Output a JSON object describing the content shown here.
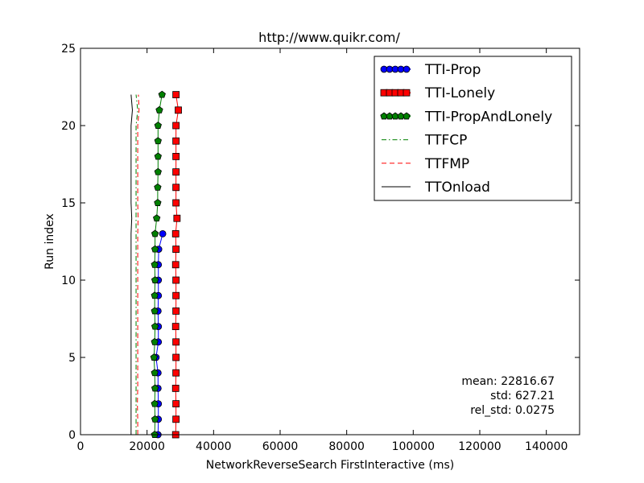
{
  "chart_data": {
    "type": "line",
    "title": "http://www.quikr.com/",
    "xlabel": "NetworkReverseSearch FirstInteractive (ms)",
    "ylabel": "Run index",
    "xlim": [
      0,
      150000
    ],
    "ylim": [
      0,
      25
    ],
    "xticks": [
      0,
      20000,
      40000,
      60000,
      80000,
      100000,
      120000,
      140000
    ],
    "yticks": [
      0,
      5,
      10,
      15,
      20,
      25
    ],
    "legend_position": "top-right",
    "grid": false,
    "series": [
      {
        "name": "TTI-Prop",
        "color": "#0000ff",
        "marker": "circle",
        "line": "solid",
        "y": [
          0,
          1,
          2,
          3,
          4,
          5,
          6,
          7,
          8,
          9,
          10,
          11,
          12,
          13
        ],
        "x": [
          23300,
          23400,
          23400,
          23300,
          23300,
          22700,
          23400,
          23400,
          23300,
          23400,
          23400,
          23400,
          23500,
          24700
        ]
      },
      {
        "name": "TTI-Lonely",
        "color": "#ff0000",
        "marker": "square",
        "line": "solid",
        "y": [
          0,
          1,
          2,
          3,
          4,
          5,
          6,
          7,
          8,
          9,
          10,
          11,
          12,
          13,
          14,
          15,
          16,
          17,
          18,
          19,
          20,
          21,
          22
        ],
        "x": [
          28600,
          28700,
          28700,
          28600,
          28700,
          28700,
          28700,
          28600,
          28700,
          28700,
          28700,
          28600,
          28700,
          28600,
          29000,
          28700,
          28700,
          28700,
          28700,
          28700,
          28700,
          29400,
          28700
        ]
      },
      {
        "name": "TTI-PropAndLonely",
        "color": "#008000",
        "marker": "pentagon",
        "line": "solid",
        "y": [
          0,
          1,
          2,
          3,
          4,
          5,
          6,
          7,
          8,
          9,
          10,
          11,
          12,
          13,
          14,
          15,
          16,
          17,
          18,
          19,
          20,
          21,
          22
        ],
        "x": [
          22300,
          22400,
          22300,
          22400,
          22300,
          22100,
          22300,
          22400,
          22300,
          22300,
          22400,
          22300,
          22400,
          22400,
          22900,
          23200,
          23200,
          23300,
          23300,
          23300,
          23300,
          23700,
          24500
        ]
      },
      {
        "name": "TTFCP",
        "color": "#008000",
        "marker": "none",
        "line": "dashdot",
        "y": [
          0,
          1,
          2,
          3,
          4,
          5,
          6,
          7,
          8,
          9,
          10,
          11,
          12,
          13,
          14,
          15,
          16,
          17,
          18,
          19,
          20,
          21,
          22
        ],
        "x": [
          16700,
          16700,
          16700,
          16700,
          16700,
          16700,
          16700,
          16700,
          16700,
          16700,
          16700,
          16700,
          16700,
          16700,
          16700,
          16700,
          16700,
          16700,
          16700,
          16700,
          16700,
          17200,
          16700
        ]
      },
      {
        "name": "TTFMP",
        "color": "#ff0000",
        "marker": "none",
        "line": "dashed",
        "y": [
          0,
          1,
          2,
          3,
          4,
          5,
          6,
          7,
          8,
          9,
          10,
          11,
          12,
          13,
          14,
          15,
          16,
          17,
          18,
          19,
          20,
          21,
          22
        ],
        "x": [
          17200,
          17200,
          17100,
          17200,
          17200,
          17200,
          17200,
          17200,
          17200,
          17200,
          17200,
          17200,
          17200,
          17200,
          17300,
          17200,
          17200,
          17200,
          17200,
          17200,
          17200,
          17600,
          17400
        ]
      },
      {
        "name": "TTOnload",
        "color": "#000000",
        "marker": "none",
        "line": "solid",
        "y": [
          0,
          1,
          2,
          3,
          4,
          5,
          6,
          7,
          8,
          9,
          10,
          11,
          12,
          13,
          14,
          15,
          16,
          17,
          18,
          19,
          20,
          21,
          22
        ],
        "x": [
          15200,
          15200,
          15200,
          15200,
          15200,
          15200,
          15200,
          15200,
          15200,
          15200,
          15200,
          15200,
          15200,
          15200,
          15400,
          15200,
          15200,
          15200,
          15200,
          15200,
          15200,
          15600,
          15200
        ]
      }
    ],
    "annotations": [
      "mean: 22816.67",
      "std: 627.21",
      "rel_std: 0.0275"
    ]
  }
}
